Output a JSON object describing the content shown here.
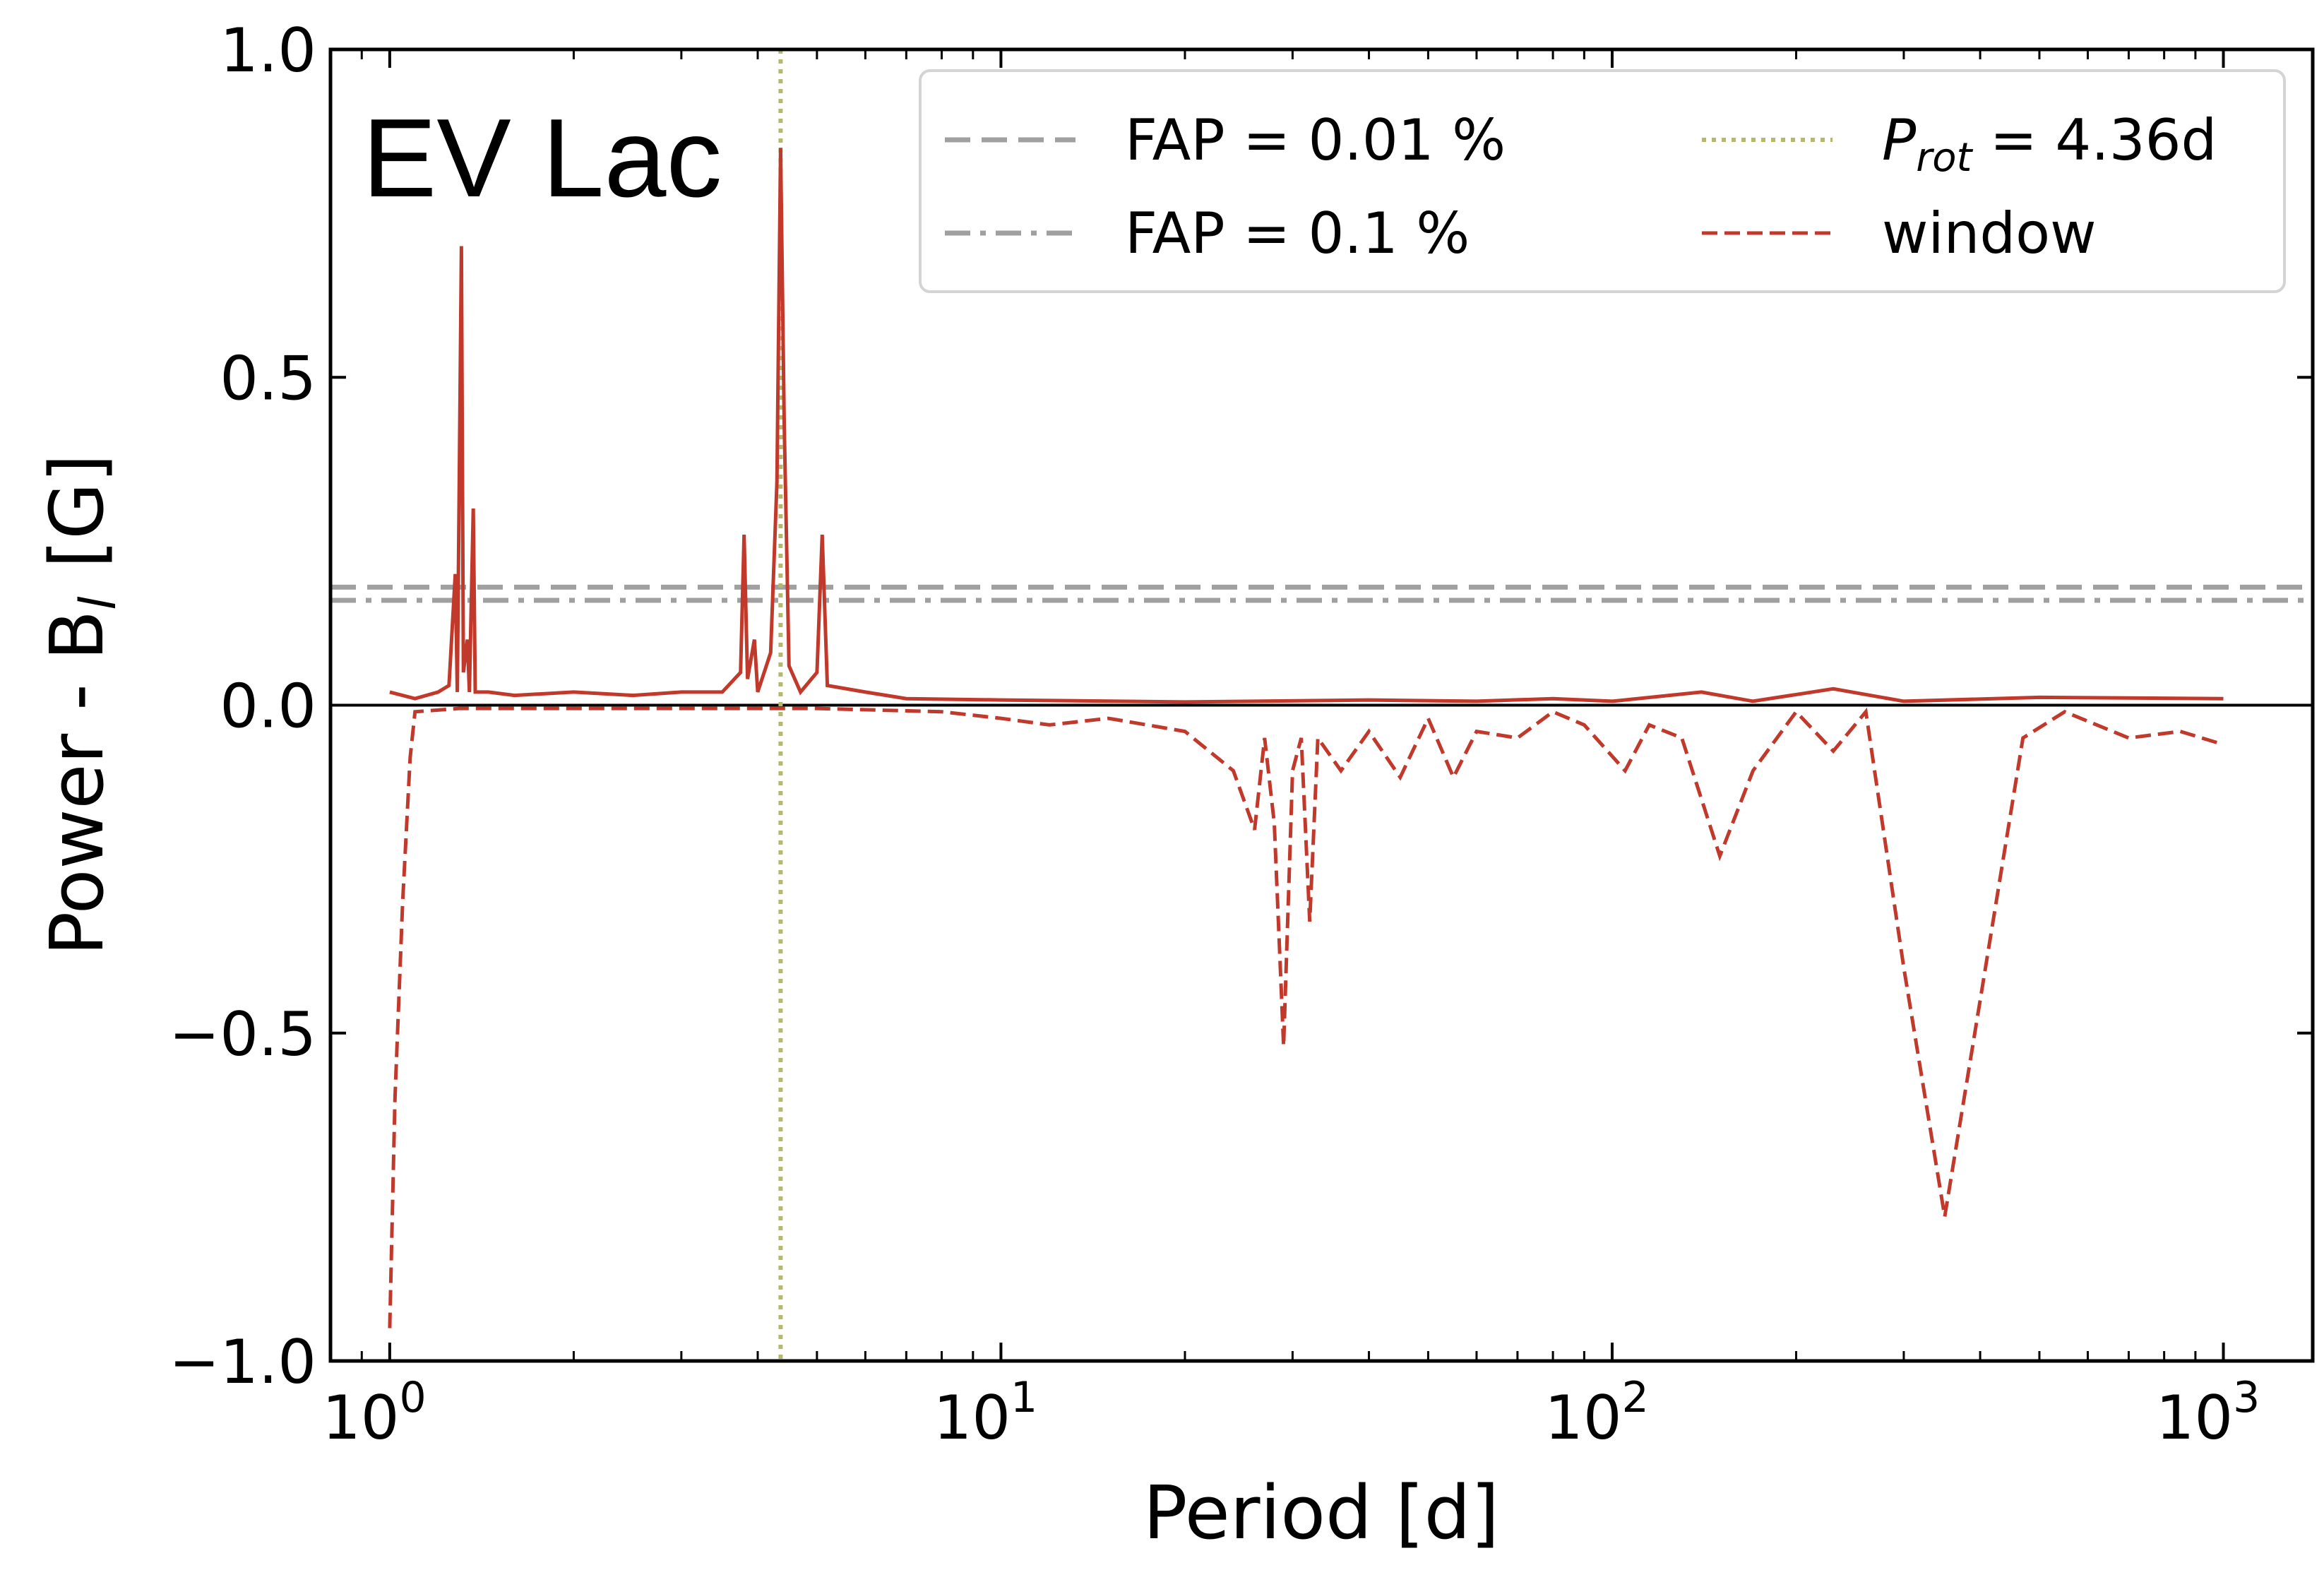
{
  "chart_data": {
    "type": "line",
    "annotation": "EV Lac",
    "xlabel": "Period [d]",
    "ylabel": "Power - B",
    "ylabel_sub": "l",
    "ylabel_unit": "[G]",
    "xscale": "log",
    "xlim": [
      0.8,
      1400
    ],
    "ylim": [
      -1.0,
      1.0
    ],
    "x_ticks": [
      {
        "value": 1,
        "base": "10",
        "exp": "0"
      },
      {
        "value": 10,
        "base": "10",
        "exp": "1"
      },
      {
        "value": 100,
        "base": "10",
        "exp": "2"
      },
      {
        "value": 1000,
        "base": "10",
        "exp": "3"
      }
    ],
    "y_ticks": [
      {
        "value": 1.0,
        "label": "1.0"
      },
      {
        "value": 0.5,
        "label": "0.5"
      },
      {
        "value": 0.0,
        "label": "0.0"
      },
      {
        "value": -0.5,
        "label": "−0.5"
      },
      {
        "value": -1.0,
        "label": "−1.0"
      }
    ],
    "legend": {
      "position": "top-right",
      "fap_001": "FAP = 0.01 %",
      "fap_01": "FAP = 0.1 %",
      "prot_sym": "P",
      "prot_sub": "rot",
      "prot_val": " = 4.36d",
      "window": "window"
    },
    "fap_levels": {
      "fap_001": 0.18,
      "fap_01": 0.16
    },
    "prot": 4.36,
    "colors": {
      "power": "#c0392b",
      "window": "#c0392b",
      "fap": "#a0a0a0",
      "prot": "#b5b96a",
      "zero": "#000000"
    },
    "series": [
      {
        "name": "power",
        "style": "solid",
        "points": [
          [
            1.0,
            0.02
          ],
          [
            1.1,
            0.01
          ],
          [
            1.2,
            0.02
          ],
          [
            1.25,
            0.03
          ],
          [
            1.28,
            0.2
          ],
          [
            1.29,
            0.02
          ],
          [
            1.31,
            0.7
          ],
          [
            1.32,
            0.05
          ],
          [
            1.34,
            0.1
          ],
          [
            1.35,
            0.02
          ],
          [
            1.37,
            0.3
          ],
          [
            1.38,
            0.02
          ],
          [
            1.45,
            0.02
          ],
          [
            1.6,
            0.015
          ],
          [
            2.0,
            0.02
          ],
          [
            2.5,
            0.015
          ],
          [
            3.0,
            0.02
          ],
          [
            3.5,
            0.02
          ],
          [
            3.75,
            0.05
          ],
          [
            3.8,
            0.26
          ],
          [
            3.85,
            0.04
          ],
          [
            3.95,
            0.1
          ],
          [
            4.0,
            0.02
          ],
          [
            4.2,
            0.08
          ],
          [
            4.3,
            0.34
          ],
          [
            4.36,
            0.85
          ],
          [
            4.42,
            0.43
          ],
          [
            4.5,
            0.06
          ],
          [
            4.7,
            0.02
          ],
          [
            5.0,
            0.05
          ],
          [
            5.1,
            0.26
          ],
          [
            5.2,
            0.03
          ],
          [
            6.0,
            0.02
          ],
          [
            7.0,
            0.01
          ],
          [
            10.0,
            0.008
          ],
          [
            20.0,
            0.005
          ],
          [
            40.0,
            0.008
          ],
          [
            60.0,
            0.006
          ],
          [
            80.0,
            0.01
          ],
          [
            100.0,
            0.006
          ],
          [
            140.0,
            0.02
          ],
          [
            170.0,
            0.006
          ],
          [
            230.0,
            0.025
          ],
          [
            300.0,
            0.006
          ],
          [
            500.0,
            0.012
          ],
          [
            1000.0,
            0.01
          ]
        ]
      },
      {
        "name": "window",
        "style": "dashed",
        "points": [
          [
            1.0,
            -0.95
          ],
          [
            1.02,
            -0.6
          ],
          [
            1.05,
            -0.3
          ],
          [
            1.08,
            -0.08
          ],
          [
            1.1,
            -0.01
          ],
          [
            1.3,
            -0.005
          ],
          [
            2.0,
            -0.005
          ],
          [
            5.0,
            -0.005
          ],
          [
            8.0,
            -0.01
          ],
          [
            10.0,
            -0.02
          ],
          [
            12.0,
            -0.03
          ],
          [
            15.0,
            -0.02
          ],
          [
            20.0,
            -0.04
          ],
          [
            24.0,
            -0.1
          ],
          [
            26.0,
            -0.19
          ],
          [
            27.0,
            -0.05
          ],
          [
            28.0,
            -0.18
          ],
          [
            29.0,
            -0.52
          ],
          [
            30.0,
            -0.1
          ],
          [
            31.0,
            -0.05
          ],
          [
            32.0,
            -0.33
          ],
          [
            33.0,
            -0.05
          ],
          [
            36.0,
            -0.1
          ],
          [
            40.0,
            -0.04
          ],
          [
            45.0,
            -0.11
          ],
          [
            50.0,
            -0.02
          ],
          [
            55.0,
            -0.11
          ],
          [
            60.0,
            -0.04
          ],
          [
            70.0,
            -0.05
          ],
          [
            80.0,
            -0.01
          ],
          [
            90.0,
            -0.03
          ],
          [
            105.0,
            -0.1
          ],
          [
            115.0,
            -0.03
          ],
          [
            130.0,
            -0.05
          ],
          [
            150.0,
            -0.23
          ],
          [
            170.0,
            -0.1
          ],
          [
            200.0,
            -0.01
          ],
          [
            230.0,
            -0.07
          ],
          [
            260.0,
            -0.01
          ],
          [
            300.0,
            -0.4
          ],
          [
            350.0,
            -0.78
          ],
          [
            400.0,
            -0.45
          ],
          [
            470.0,
            -0.05
          ],
          [
            550.0,
            -0.01
          ],
          [
            700.0,
            -0.05
          ],
          [
            850.0,
            -0.04
          ],
          [
            1000.0,
            -0.06
          ]
        ]
      }
    ]
  }
}
